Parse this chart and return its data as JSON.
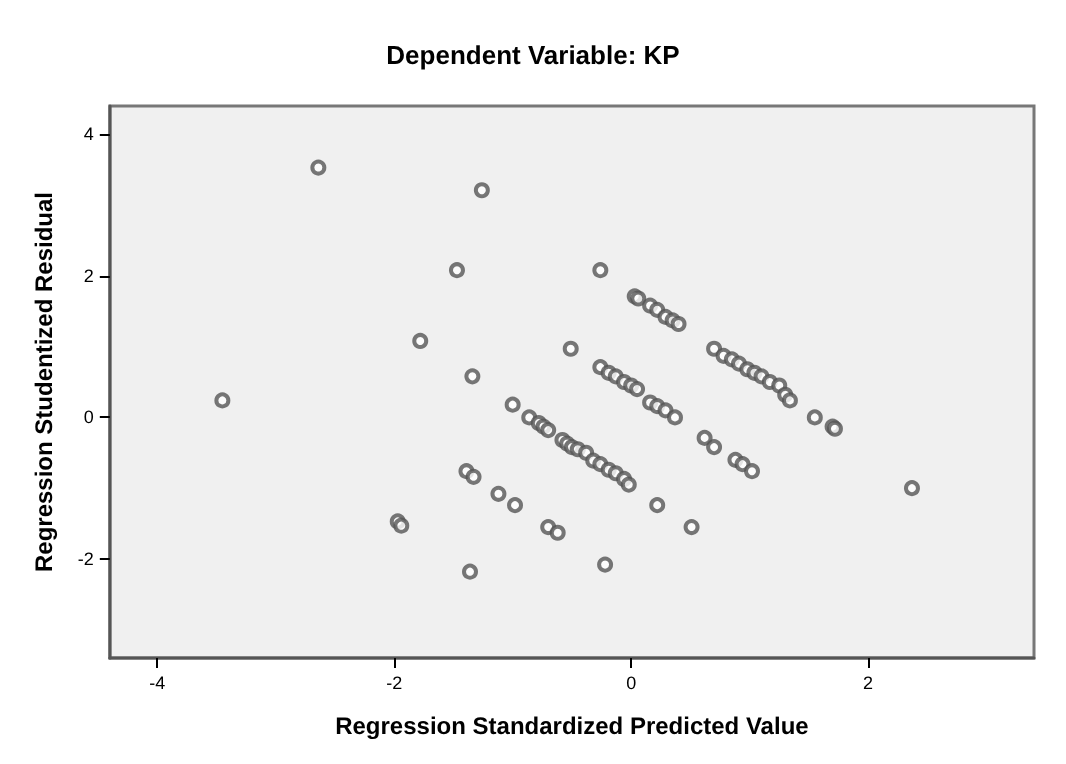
{
  "chart_data": {
    "type": "scatter",
    "title": "Dependent Variable: KP",
    "xlabel": "Regression Standardized Predicted Value",
    "ylabel": "Regression Studentized Residual",
    "xlim": [
      -4.4,
      3.4
    ],
    "ylim": [
      -3.4,
      4.4
    ],
    "xticks": [
      -4,
      -2,
      0,
      2
    ],
    "yticks": [
      -2,
      0,
      2,
      4
    ],
    "grid": false,
    "marker": "circle",
    "series": [
      {
        "color": "#555555",
        "x": [
          -3.45,
          -2.64,
          -1.26,
          -1.47,
          -1.78,
          -1.34,
          -0.26,
          -0.51,
          -1.0,
          -0.86,
          -0.78,
          -0.74,
          -0.7,
          -0.58,
          -0.54,
          -0.5,
          -0.45,
          -0.38,
          -0.32,
          -0.26,
          -0.19,
          -0.13,
          -0.06,
          -0.02,
          -0.26,
          -0.19,
          -0.13,
          -0.06,
          0.0,
          0.05,
          0.16,
          0.22,
          0.29,
          0.37,
          0.62,
          0.7,
          0.88,
          0.94,
          1.02,
          0.03,
          0.06,
          0.16,
          0.22,
          0.29,
          0.35,
          0.4,
          0.7,
          0.78,
          0.85,
          0.91,
          0.98,
          1.04,
          1.1,
          1.17,
          1.25,
          1.3,
          1.34,
          1.55,
          1.7,
          1.72,
          -0.22,
          0.22,
          0.51,
          2.37,
          -1.97,
          -1.94,
          -1.39,
          -1.33,
          -1.12,
          -0.98,
          -0.7,
          -0.62,
          -1.36
        ],
        "values": [
          0.24,
          3.53,
          3.21,
          2.08,
          1.08,
          0.58,
          2.08,
          0.97,
          0.18,
          0.0,
          -0.08,
          -0.13,
          -0.18,
          -0.32,
          -0.37,
          -0.42,
          -0.45,
          -0.5,
          -0.61,
          -0.66,
          -0.74,
          -0.79,
          -0.87,
          -0.95,
          0.71,
          0.63,
          0.58,
          0.5,
          0.45,
          0.4,
          0.21,
          0.16,
          0.1,
          0.0,
          -0.29,
          -0.42,
          -0.6,
          -0.66,
          -0.76,
          1.71,
          1.68,
          1.58,
          1.52,
          1.42,
          1.37,
          1.32,
          0.97,
          0.87,
          0.82,
          0.76,
          0.68,
          0.63,
          0.58,
          0.5,
          0.45,
          0.32,
          0.24,
          0.0,
          -0.13,
          -0.16,
          -2.08,
          -1.24,
          -1.55,
          -1.0,
          -1.47,
          -1.53,
          -0.76,
          -0.84,
          -1.08,
          -1.24,
          -1.55,
          -1.63,
          -2.18
        ]
      }
    ]
  }
}
